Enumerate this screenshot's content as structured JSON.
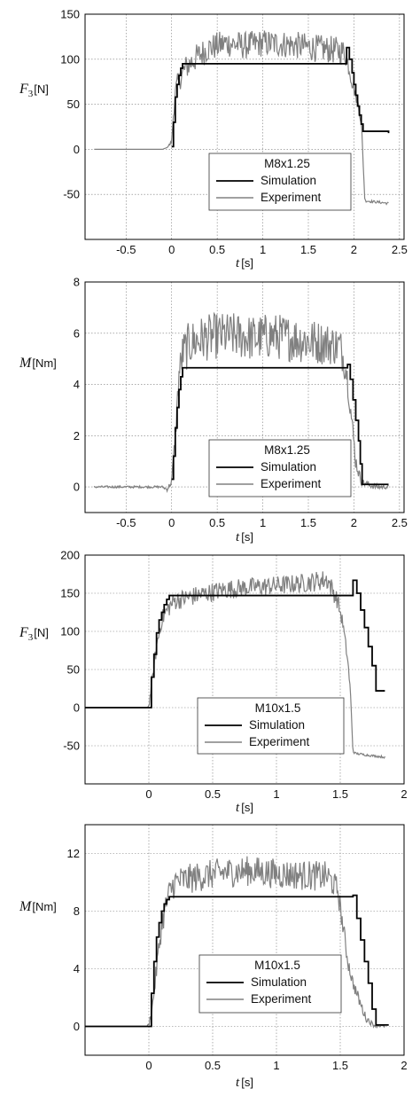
{
  "chart_data": [
    {
      "type": "line",
      "ylabel_main": "F",
      "ylabel_sub": "3",
      "ylabel_unit": "[N]",
      "xlabel_main": "t",
      "xlabel_unit": "[s]",
      "xlim": [
        -0.95,
        2.55
      ],
      "ylim": [
        -100,
        150
      ],
      "xticks": [
        -0.5,
        0,
        0.5,
        1,
        1.5,
        2,
        2.5
      ],
      "xtick_labels": [
        "-0.5",
        "0",
        "0.5",
        "1",
        "1.5",
        "2",
        "2.5"
      ],
      "yticks": [
        -50,
        0,
        50,
        100,
        150
      ],
      "ytick_labels": [
        "-50",
        "0",
        "50",
        "100",
        "150"
      ],
      "grid": true,
      "legend": {
        "title": "M8x1.25",
        "position": "lower-right"
      },
      "series": [
        {
          "name": "Simulation",
          "color": "#000000",
          "style": "step",
          "x": [
            0,
            0.02,
            0.04,
            0.06,
            0.08,
            0.1,
            0.12,
            1.92,
            1.95,
            1.98,
            2.0,
            2.02,
            2.04,
            2.06,
            2.08,
            2.1,
            2.38
          ],
          "y": [
            3,
            30,
            58,
            72,
            82,
            90,
            95,
            113,
            100,
            85,
            72,
            60,
            48,
            38,
            28,
            20,
            18
          ]
        },
        {
          "name": "Experiment",
          "color": "#808080",
          "style": "noisy",
          "x": [
            -0.85,
            -0.1,
            -0.05,
            0,
            0.03,
            0.06,
            0.1,
            0.15,
            0.25,
            0.4,
            0.6,
            0.8,
            1.0,
            1.2,
            1.4,
            1.6,
            1.8,
            1.9,
            1.95,
            1.98,
            2.02,
            2.05,
            2.08,
            2.1,
            2.12,
            2.2,
            2.3,
            2.38
          ],
          "y": [
            0,
            0,
            2,
            8,
            55,
            72,
            80,
            90,
            100,
            112,
            118,
            115,
            118,
            117,
            115,
            112,
            110,
            108,
            90,
            75,
            60,
            50,
            30,
            -10,
            -57,
            -58,
            -59,
            -60
          ],
          "noise": [
            0,
            0,
            0,
            2,
            8,
            8,
            9,
            10,
            11,
            11,
            11,
            11,
            11,
            11,
            11,
            11,
            11,
            10,
            8,
            6,
            5,
            5,
            4,
            3,
            1,
            1,
            1,
            1
          ]
        }
      ]
    },
    {
      "type": "line",
      "ylabel_main": "M",
      "ylabel_sub": "",
      "ylabel_unit": "[Nm]",
      "xlabel_main": "t",
      "xlabel_unit": "[s]",
      "xlim": [
        -0.95,
        2.55
      ],
      "ylim": [
        -1,
        8
      ],
      "xticks": [
        -0.5,
        0,
        0.5,
        1,
        1.5,
        2,
        2.5
      ],
      "xtick_labels": [
        "-0.5",
        "0",
        "0.5",
        "1",
        "1.5",
        "2",
        "2.5"
      ],
      "yticks": [
        0,
        2,
        4,
        6,
        8
      ],
      "ytick_labels": [
        "0",
        "2",
        "4",
        "6",
        "8"
      ],
      "grid": true,
      "legend": {
        "title": "M8x1.25",
        "position": "lower-right"
      },
      "series": [
        {
          "name": "Simulation",
          "color": "#000000",
          "style": "step",
          "x": [
            0,
            0.02,
            0.04,
            0.06,
            0.08,
            0.1,
            0.12,
            1.93,
            1.96,
            1.99,
            2.02,
            2.05,
            2.07,
            2.09,
            2.38
          ],
          "y": [
            0.3,
            1.2,
            2.3,
            3.1,
            3.8,
            4.3,
            4.65,
            4.78,
            4.2,
            3.4,
            2.6,
            1.8,
            0.9,
            0.1,
            0.1
          ]
        },
        {
          "name": "Experiment",
          "color": "#808080",
          "style": "noisy",
          "x": [
            -0.85,
            -0.1,
            -0.05,
            0,
            0.05,
            0.08,
            0.12,
            0.2,
            0.35,
            0.5,
            0.7,
            0.9,
            1.1,
            1.3,
            1.5,
            1.7,
            1.85,
            1.92,
            1.97,
            2.02,
            2.08,
            2.15,
            2.25,
            2.38
          ],
          "y": [
            0,
            0,
            -0.1,
            0.2,
            2.5,
            4.4,
            5.2,
            5.6,
            5.8,
            5.9,
            5.9,
            5.8,
            5.9,
            5.8,
            5.7,
            5.6,
            5.5,
            4.5,
            2.8,
            1.0,
            0.2,
            0.1,
            0.0,
            0.0
          ],
          "noise": [
            0.03,
            0.03,
            0.05,
            0.1,
            0.3,
            0.4,
            0.6,
            0.65,
            0.65,
            0.65,
            0.65,
            0.65,
            0.65,
            0.65,
            0.65,
            0.6,
            0.55,
            0.4,
            0.3,
            0.25,
            0.1,
            0.1,
            0.08,
            0.05
          ]
        }
      ]
    },
    {
      "type": "line",
      "ylabel_main": "F",
      "ylabel_sub": "3",
      "ylabel_unit": "[N]",
      "xlabel_main": "t",
      "xlabel_unit": "[s]",
      "xlim": [
        -0.5,
        2.0
      ],
      "ylim": [
        -100,
        200
      ],
      "xticks": [
        0,
        0.5,
        1,
        1.5,
        2
      ],
      "xtick_labels": [
        "0",
        "0.5",
        "1",
        "1.5",
        "2"
      ],
      "yticks": [
        -50,
        0,
        50,
        100,
        150,
        200
      ],
      "ytick_labels": [
        "-50",
        "0",
        "50",
        "100",
        "150",
        "200"
      ],
      "grid": true,
      "legend": {
        "title": "M10x1.5",
        "position": "lower-center"
      },
      "series": [
        {
          "name": "Simulation",
          "color": "#000000",
          "style": "step",
          "x": [
            -0.5,
            0,
            0.02,
            0.04,
            0.06,
            0.08,
            0.1,
            0.12,
            0.14,
            0.16,
            1.6,
            1.63,
            1.66,
            1.69,
            1.72,
            1.75,
            1.78,
            1.85
          ],
          "y": [
            0,
            0,
            40,
            70,
            98,
            115,
            125,
            135,
            142,
            147,
            167,
            150,
            128,
            105,
            80,
            55,
            22,
            22
          ]
        },
        {
          "name": "Experiment",
          "color": "#808080",
          "style": "noisy",
          "x": [
            -0.5,
            -0.02,
            0,
            0.03,
            0.06,
            0.1,
            0.15,
            0.2,
            0.4,
            0.6,
            0.8,
            1.0,
            1.2,
            1.4,
            1.48,
            1.52,
            1.56,
            1.58,
            1.6,
            1.62,
            1.7,
            1.8,
            1.85
          ],
          "y": [
            0,
            0,
            2,
            40,
            80,
            115,
            130,
            140,
            148,
            155,
            158,
            160,
            163,
            168,
            140,
            110,
            60,
            20,
            -58,
            -60,
            -62,
            -64,
            -65
          ],
          "noise": [
            0,
            0,
            2,
            6,
            8,
            8,
            9,
            9,
            9,
            9,
            9,
            9,
            9,
            10,
            8,
            6,
            5,
            3,
            1,
            1,
            1,
            1,
            1
          ]
        }
      ]
    },
    {
      "type": "line",
      "ylabel_main": "M",
      "ylabel_sub": "",
      "ylabel_unit": "[Nm]",
      "xlabel_main": "t",
      "xlabel_unit": "[s]",
      "xlim": [
        -0.5,
        2.0
      ],
      "ylim": [
        -2,
        14
      ],
      "xticks": [
        0,
        0.5,
        1,
        1.5,
        2
      ],
      "xtick_labels": [
        "0",
        "0.5",
        "1",
        "1.5",
        "2"
      ],
      "yticks": [
        0,
        4,
        8,
        12
      ],
      "ytick_labels": [
        "0",
        "4",
        "8",
        "12"
      ],
      "grid": true,
      "legend": {
        "title": "M10x1.5",
        "position": "lower-center"
      },
      "series": [
        {
          "name": "Simulation",
          "color": "#000000",
          "style": "step",
          "x": [
            -0.5,
            0,
            0.02,
            0.04,
            0.06,
            0.08,
            0.1,
            0.12,
            0.14,
            0.16,
            1.6,
            1.63,
            1.66,
            1.69,
            1.72,
            1.75,
            1.78,
            1.88
          ],
          "y": [
            0,
            0,
            2.3,
            4.5,
            6.2,
            7.2,
            8.0,
            8.5,
            8.8,
            9.0,
            9.1,
            7.5,
            6.0,
            4.5,
            3.0,
            1.2,
            0.1,
            0.1
          ]
        },
        {
          "name": "Experiment",
          "color": "#808080",
          "style": "noisy",
          "x": [
            -0.5,
            -0.02,
            0,
            0.03,
            0.06,
            0.1,
            0.15,
            0.2,
            0.4,
            0.6,
            0.8,
            1.0,
            1.2,
            1.4,
            1.48,
            1.52,
            1.56,
            1.6,
            1.64,
            1.7,
            1.76,
            1.85
          ],
          "y": [
            0,
            0,
            0.1,
            1.5,
            4.0,
            7.0,
            9.0,
            10.0,
            10.4,
            10.7,
            10.8,
            10.6,
            10.5,
            10.4,
            9.5,
            7.0,
            4.5,
            3.0,
            2.0,
            0.6,
            0.1,
            0.0
          ],
          "noise": [
            0,
            0,
            0.1,
            0.3,
            0.5,
            0.6,
            0.7,
            0.75,
            0.75,
            0.75,
            0.75,
            0.75,
            0.75,
            0.75,
            0.6,
            0.5,
            0.4,
            0.3,
            0.3,
            0.2,
            0.1,
            0.05
          ]
        }
      ]
    }
  ]
}
